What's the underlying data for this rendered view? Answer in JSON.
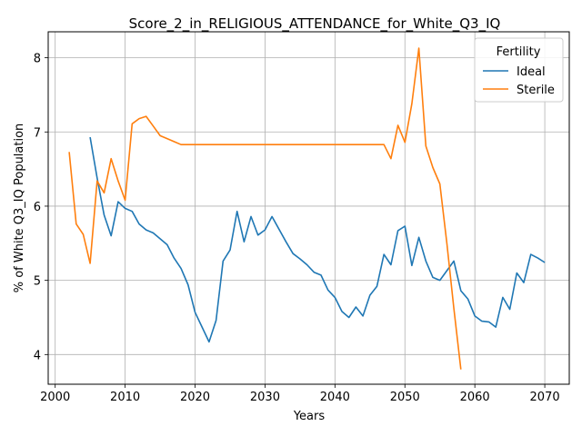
{
  "chart_data": {
    "type": "line",
    "title": "Score_2_in_RELIGIOUS_ATTENDANCE_for_White_Q3_IQ",
    "xlabel": "Years",
    "ylabel": "% of White Q3_IQ Population",
    "xlim": [
      1999,
      2073.5
    ],
    "ylim": [
      3.6,
      8.35
    ],
    "xticks": [
      2000,
      2010,
      2020,
      2030,
      2040,
      2050,
      2060,
      2070
    ],
    "yticks": [
      4,
      5,
      6,
      7,
      8
    ],
    "grid": true,
    "legend": {
      "title": "Fertility",
      "placement": "top-right"
    },
    "series": [
      {
        "name": "Ideal",
        "color": "#1f77b4",
        "x": [
          2005,
          2006,
          2007,
          2008,
          2009,
          2010,
          2011,
          2012,
          2013,
          2014,
          2015,
          2016,
          2017,
          2018,
          2019,
          2020,
          2021,
          2022,
          2023,
          2024,
          2025,
          2026,
          2027,
          2028,
          2029,
          2030,
          2031,
          2032,
          2033,
          2034,
          2035,
          2036,
          2037,
          2038,
          2039,
          2040,
          2041,
          2042,
          2043,
          2044,
          2045,
          2046,
          2047,
          2048,
          2049,
          2050,
          2051,
          2052,
          2053,
          2054,
          2055,
          2056,
          2057,
          2058,
          2059,
          2060,
          2061,
          2062,
          2063,
          2064,
          2065,
          2066,
          2067,
          2068,
          2069,
          2070
        ],
        "y": [
          6.93,
          6.38,
          5.88,
          5.6,
          6.06,
          5.97,
          5.93,
          5.76,
          5.68,
          5.64,
          5.56,
          5.48,
          5.3,
          5.16,
          4.94,
          4.57,
          4.37,
          4.17,
          4.46,
          5.26,
          5.41,
          5.93,
          5.52,
          5.86,
          5.61,
          5.68,
          5.86,
          5.69,
          5.52,
          5.36,
          5.29,
          5.21,
          5.11,
          5.07,
          4.87,
          4.77,
          4.58,
          4.5,
          4.64,
          4.52,
          4.8,
          4.92,
          5.35,
          5.21,
          5.67,
          5.73,
          5.2,
          5.58,
          5.26,
          5.04,
          5.0,
          5.13,
          5.26,
          4.86,
          4.75,
          4.52,
          4.45,
          4.44,
          4.37,
          4.77,
          4.61,
          5.1,
          4.97,
          5.35,
          5.3,
          5.24
        ]
      },
      {
        "name": "Sterile",
        "color": "#ff7f0e",
        "x": [
          2002,
          2003,
          2004,
          2005,
          2006,
          2007,
          2008,
          2009,
          2010,
          2011,
          2012,
          2013,
          2014,
          2015,
          2016,
          2017,
          2018,
          2019,
          2020,
          2021,
          2022,
          2023,
          2024,
          2025,
          2026,
          2027,
          2028,
          2029,
          2030,
          2031,
          2032,
          2033,
          2034,
          2035,
          2036,
          2037,
          2038,
          2039,
          2040,
          2041,
          2042,
          2043,
          2044,
          2045,
          2046,
          2047,
          2048,
          2049,
          2050,
          2051,
          2052,
          2053,
          2054,
          2055,
          2056,
          2057,
          2058
        ],
        "y": [
          6.73,
          5.76,
          5.62,
          5.23,
          6.34,
          6.18,
          6.64,
          6.34,
          6.08,
          7.11,
          7.18,
          7.21,
          7.08,
          6.95,
          6.91,
          6.87,
          6.83,
          6.83,
          6.83,
          6.83,
          6.83,
          6.83,
          6.83,
          6.83,
          6.83,
          6.83,
          6.83,
          6.83,
          6.83,
          6.83,
          6.83,
          6.83,
          6.83,
          6.83,
          6.83,
          6.83,
          6.83,
          6.83,
          6.83,
          6.83,
          6.83,
          6.83,
          6.83,
          6.83,
          6.83,
          6.83,
          6.64,
          7.09,
          6.86,
          7.38,
          8.13,
          6.81,
          6.52,
          6.3,
          5.5,
          4.62,
          3.8
        ]
      }
    ]
  }
}
